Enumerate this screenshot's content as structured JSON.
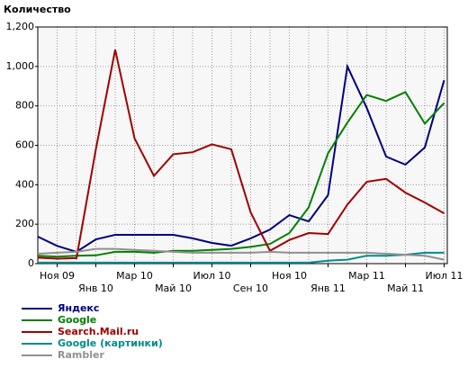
{
  "chart_data": {
    "type": "line",
    "title": "Количество",
    "categories": [
      null,
      "Ноя 09",
      null,
      "Янв 10",
      null,
      "Мар 10",
      null,
      "Май 10",
      null,
      "Июл 10",
      null,
      "Сен 10",
      null,
      "Ноя 10",
      null,
      "Янв 11",
      null,
      "Мар 11",
      null,
      "Май 11",
      null,
      "Июл 11"
    ],
    "series": [
      {
        "name": "Яндекс",
        "color": "#000080",
        "values": [
          137,
          90,
          60,
          123,
          146,
          146,
          146,
          146,
          128,
          105,
          91,
          128,
          173,
          246,
          214,
          347,
          1000,
          790,
          543,
          502,
          589,
          930
        ]
      },
      {
        "name": "Google",
        "color": "#008000",
        "values": [
          40,
          35,
          40,
          42,
          60,
          60,
          55,
          65,
          65,
          70,
          75,
          85,
          100,
          155,
          285,
          560,
          715,
          855,
          825,
          870,
          710,
          815
        ]
      },
      {
        "name": "Search.Mail.ru",
        "color": "#a00000",
        "values": [
          30,
          25,
          28,
          580,
          1085,
          635,
          445,
          555,
          565,
          605,
          580,
          260,
          65,
          120,
          155,
          150,
          300,
          415,
          430,
          360,
          310,
          255
        ]
      },
      {
        "name": "Google (картинки)",
        "color": "#008b8b",
        "values": [
          5,
          5,
          5,
          5,
          5,
          5,
          5,
          5,
          5,
          5,
          5,
          5,
          5,
          5,
          5,
          15,
          20,
          40,
          40,
          45,
          55,
          55
        ]
      },
      {
        "name": "Rambler",
        "color": "#909090",
        "values": [
          50,
          55,
          60,
          75,
          75,
          70,
          65,
          60,
          55,
          55,
          55,
          55,
          60,
          55,
          55,
          55,
          55,
          55,
          50,
          45,
          40,
          20
        ]
      }
    ],
    "ylim": [
      0,
      1200
    ],
    "yticks": [
      0,
      200,
      400,
      600,
      800,
      {
        "value": 1000,
        "label": "1,000"
      },
      {
        "value": 1200,
        "label": "1,200"
      }
    ],
    "grid": true,
    "legend": "bottom-left"
  }
}
